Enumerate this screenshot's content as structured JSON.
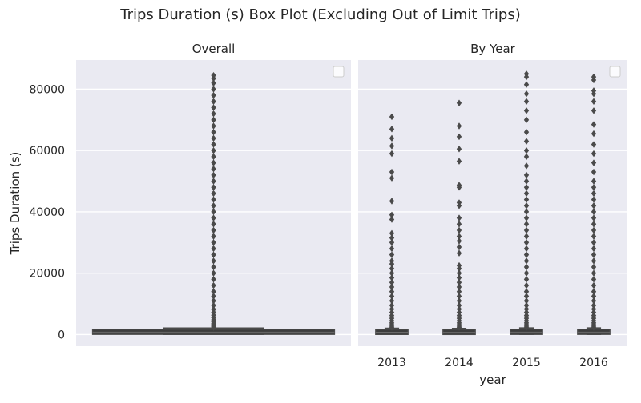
{
  "figure": {
    "suptitle": "Trips Duration (s) Box Plot (Excluding Out of Limit Trips)"
  },
  "chart_data": [
    {
      "type": "box",
      "title": "Overall",
      "xlabel": "",
      "ylabel": "Trips Duration (s)",
      "ylim": [
        -3800,
        89500
      ],
      "yticks": [
        0,
        20000,
        40000,
        60000,
        80000
      ],
      "yticklabels": [
        "0",
        "20000",
        "40000",
        "60000",
        "80000"
      ],
      "grid": true,
      "legend": "top-right (empty)",
      "boxes": [
        {
          "category": "",
          "q1": 450,
          "median": 780,
          "q3": 1320,
          "whisker_low": 60,
          "whisker_high": 2100,
          "outliers": [
            2300,
            2600,
            2900,
            3300,
            3700,
            4200,
            4800,
            5500,
            6300,
            7200,
            8200,
            9500,
            11000,
            12500,
            14000,
            16000,
            18000,
            20000,
            22000,
            24000,
            26000,
            28000,
            30000,
            32000,
            34000,
            36000,
            38000,
            40000,
            42000,
            44000,
            46000,
            48000,
            50000,
            52000,
            54000,
            56000,
            58000,
            60000,
            62000,
            64000,
            66000,
            68000,
            70000,
            72000,
            74000,
            76000,
            78000,
            80000,
            82000,
            83500,
            84500
          ]
        }
      ]
    },
    {
      "type": "box",
      "title": "By Year",
      "xlabel": "year",
      "ylabel": "",
      "ylim": [
        -3800,
        89500
      ],
      "categories": [
        "2013",
        "2014",
        "2015",
        "2016"
      ],
      "grid": true,
      "legend": "top-right (empty)",
      "boxes": [
        {
          "category": "2013",
          "q1": 420,
          "median": 760,
          "q3": 1300,
          "whisker_low": 60,
          "whisker_high": 2050,
          "outliers": [
            2300,
            2700,
            3200,
            3800,
            4500,
            5300,
            6200,
            7200,
            8300,
            9500,
            11000,
            12500,
            14000,
            15500,
            17000,
            18500,
            20000,
            21500,
            23000,
            24000,
            26000,
            28000,
            30000,
            31500,
            33000,
            37500,
            39000,
            43500,
            51000,
            53000,
            59000,
            61500,
            64000,
            67000,
            71000
          ]
        },
        {
          "category": "2014",
          "q1": 410,
          "median": 740,
          "q3": 1280,
          "whisker_low": 60,
          "whisker_high": 2000,
          "outliers": [
            2300,
            2700,
            3200,
            3800,
            4500,
            5300,
            6200,
            7200,
            8300,
            9500,
            11000,
            12500,
            14000,
            15500,
            17000,
            18500,
            20000,
            21500,
            22500,
            26500,
            28500,
            30500,
            32000,
            34000,
            36000,
            38000,
            42000,
            43000,
            48000,
            48700,
            56500,
            60500,
            64500,
            68000,
            75500
          ]
        },
        {
          "category": "2015",
          "q1": 440,
          "median": 790,
          "q3": 1340,
          "whisker_low": 60,
          "whisker_high": 2150,
          "outliers": [
            2300,
            2700,
            3200,
            3800,
            4500,
            5300,
            6200,
            7200,
            8300,
            9500,
            11000,
            12500,
            14000,
            16000,
            18000,
            20000,
            22000,
            24000,
            26000,
            28000,
            30000,
            32000,
            34000,
            36000,
            38000,
            40000,
            42000,
            44000,
            46000,
            48000,
            50000,
            52000,
            55000,
            58000,
            60000,
            63000,
            66000,
            70000,
            73000,
            76000,
            78500,
            81500,
            84000,
            85000
          ]
        },
        {
          "category": "2016",
          "q1": 450,
          "median": 800,
          "q3": 1350,
          "whisker_low": 60,
          "whisker_high": 2150,
          "outliers": [
            2300,
            2700,
            3200,
            3800,
            4500,
            5300,
            6200,
            7200,
            8300,
            9500,
            11000,
            12500,
            14000,
            16000,
            18000,
            20000,
            22000,
            24000,
            26000,
            28000,
            30000,
            32000,
            34000,
            36000,
            38000,
            40000,
            42000,
            44000,
            46000,
            48000,
            50000,
            53000,
            56000,
            59000,
            62000,
            65500,
            68500,
            73000,
            76000,
            78500,
            79500,
            83000,
            84000
          ]
        }
      ]
    }
  ]
}
